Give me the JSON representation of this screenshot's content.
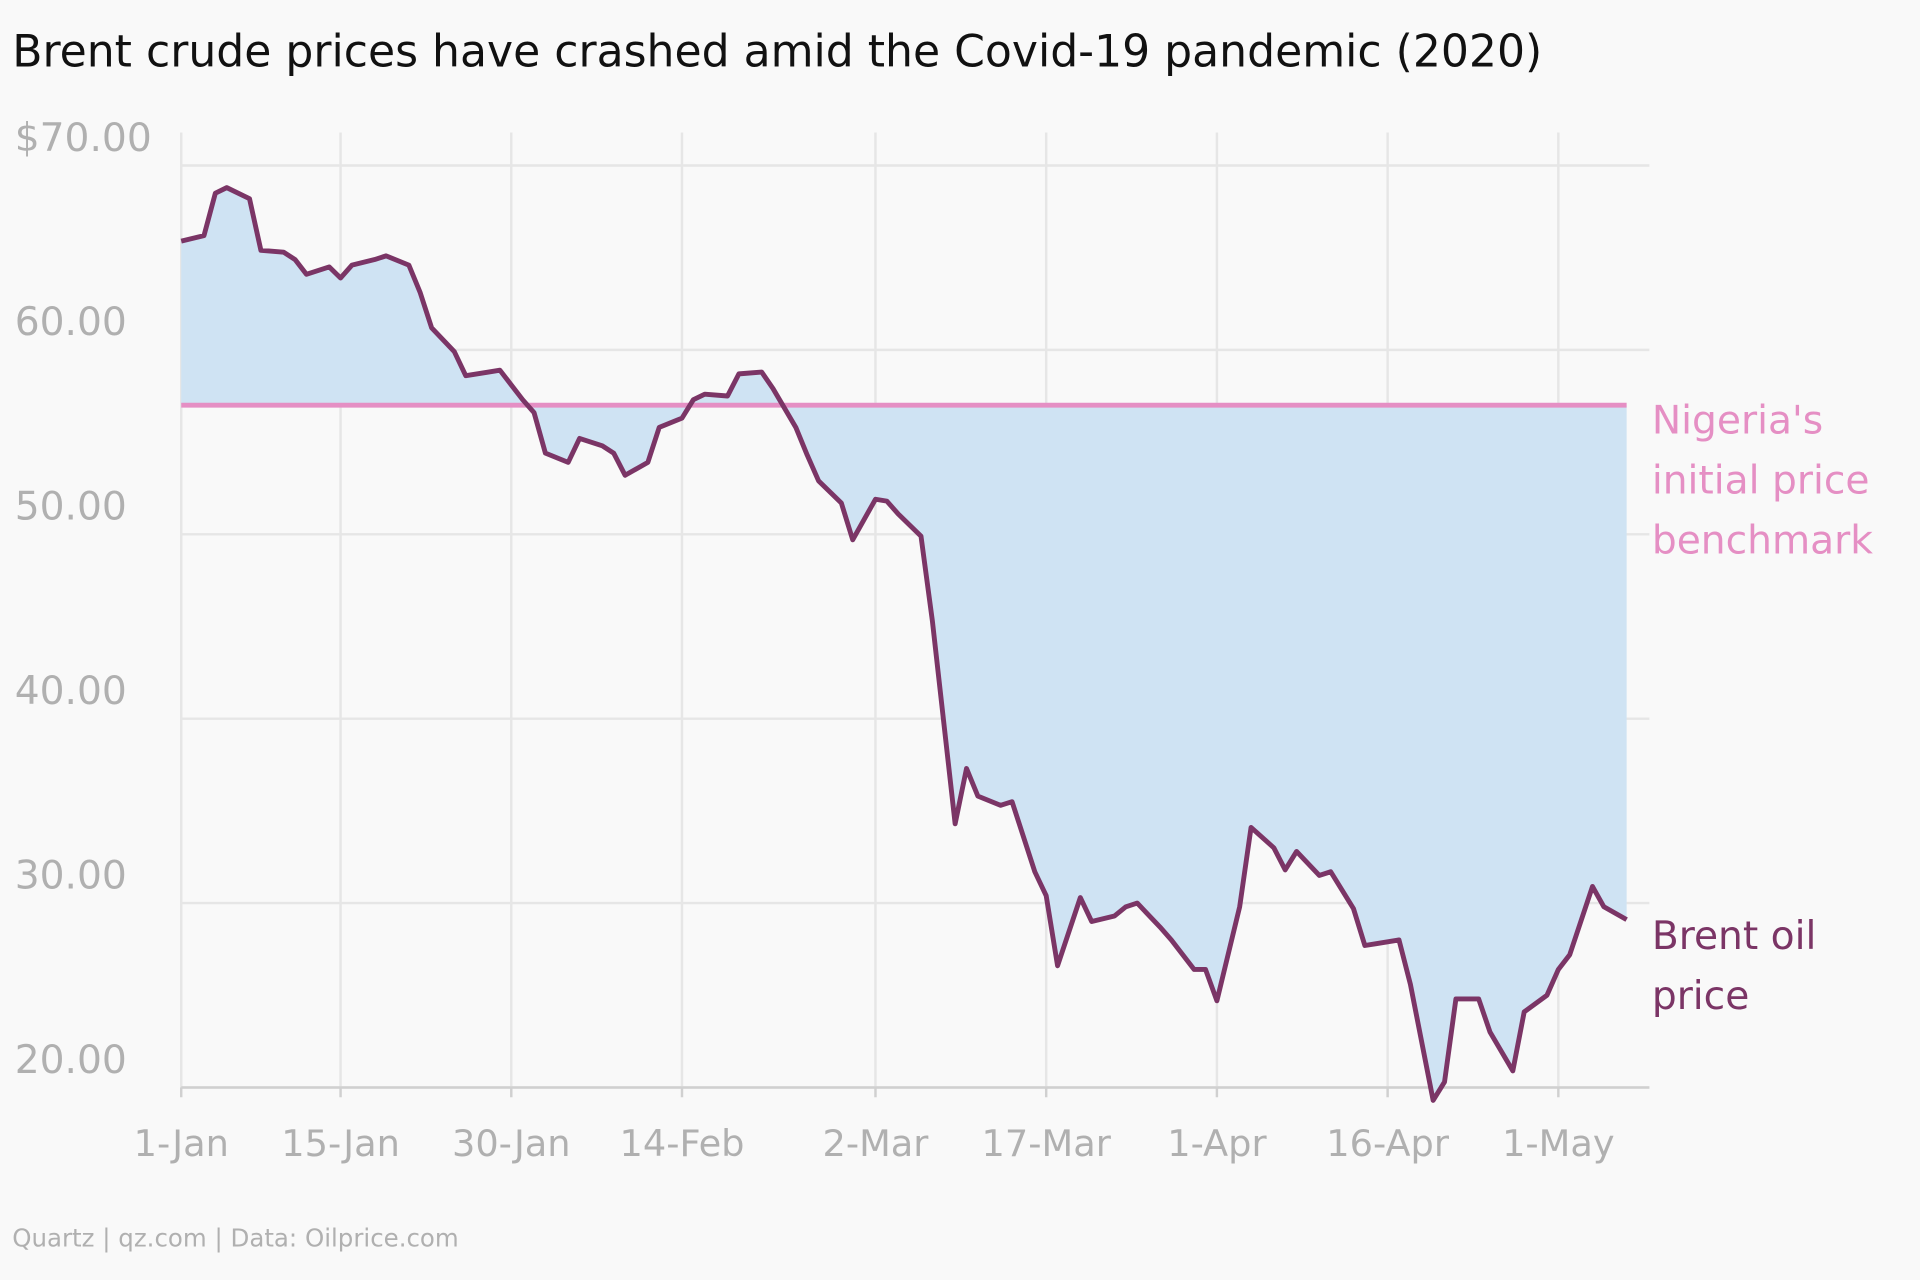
{
  "chart_data": {
    "type": "line",
    "title": "Brent crude prices have crashed amid the Covid-19 pandemic (2020)",
    "source": "Quartz | qz.com | Data: Oilprice.com",
    "x": [
      "1-Jan",
      "3-Jan",
      "4-Jan",
      "5-Jan",
      "7-Jan",
      "8-Jan",
      "10-Jan",
      "11-Jan",
      "12-Jan",
      "14-Jan",
      "15-Jan",
      "16-Jan",
      "18-Jan",
      "19-Jan",
      "21-Jan",
      "22-Jan",
      "23-Jan",
      "25-Jan",
      "26-Jan",
      "28-Jan",
      "29-Jan",
      "31-Jan",
      "1-Feb",
      "2-Feb",
      "4-Feb",
      "5-Feb",
      "7-Feb",
      "8-Feb",
      "9-Feb",
      "11-Feb",
      "12-Feb",
      "14-Feb",
      "15-Feb",
      "16-Feb",
      "18-Feb",
      "19-Feb",
      "21-Feb",
      "22-Feb",
      "24-Feb",
      "25-Feb",
      "26-Feb",
      "28-Feb",
      "29-Feb",
      "2-Mar",
      "3-Mar",
      "4-Mar",
      "6-Mar",
      "7-Mar",
      "9-Mar",
      "10-Mar",
      "11-Mar",
      "13-Mar",
      "14-Mar",
      "16-Mar",
      "17-Mar",
      "18-Mar",
      "20-Mar",
      "21-Mar",
      "23-Mar",
      "24-Mar",
      "25-Mar",
      "27-Mar",
      "28-Mar",
      "30-Mar",
      "31-Mar",
      "1-Apr",
      "3-Apr",
      "4-Apr",
      "6-Apr",
      "7-Apr",
      "8-Apr",
      "10-Apr",
      "11-Apr",
      "13-Apr",
      "14-Apr",
      "15-Apr",
      "17-Apr",
      "18-Apr",
      "20-Apr",
      "21-Apr",
      "22-Apr",
      "24-Apr",
      "25-Apr",
      "27-Apr",
      "28-Apr",
      "30-Apr",
      "1-May",
      "2-May",
      "4-May",
      "5-May",
      "7-May"
    ],
    "series": [
      {
        "name": "Brent oil price",
        "color": "#7b3566",
        "values": [
          65.9,
          66.2,
          68.5,
          68.8,
          68.2,
          65.4,
          65.3,
          64.9,
          64.1,
          64.5,
          63.9,
          64.6,
          64.9,
          65.1,
          64.6,
          63.1,
          61.2,
          59.9,
          58.6,
          58.8,
          58.9,
          57.3,
          56.6,
          54.4,
          53.9,
          55.2,
          54.8,
          54.4,
          53.2,
          53.9,
          55.8,
          56.3,
          57.3,
          57.6,
          57.5,
          58.7,
          58.8,
          57.9,
          55.8,
          54.3,
          52.9,
          51.7,
          49.7,
          51.9,
          51.8,
          51.1,
          49.9,
          45.3,
          34.3,
          37.3,
          35.8,
          35.3,
          35.5,
          31.7,
          30.4,
          26.6,
          30.3,
          29.0,
          29.3,
          29.8,
          30.0,
          28.7,
          28.0,
          26.4,
          26.4,
          24.7,
          29.8,
          34.1,
          33.0,
          31.8,
          32.8,
          31.5,
          31.7,
          29.7,
          27.7,
          27.8,
          28.0,
          25.6,
          19.3,
          20.3,
          24.8,
          24.8,
          23.0,
          20.9,
          24.1,
          25.0,
          26.4,
          27.2,
          30.9,
          29.8,
          29.1
        ]
      }
    ],
    "benchmark": {
      "name": "Nigeria's initial price benchmark",
      "value": 57,
      "color": "#e58fc4"
    },
    "fill_color": "#cfe3f3",
    "xlim": [
      "1-Jan",
      "9-May"
    ],
    "xticks": [
      "1-Jan",
      "15-Jan",
      "30-Jan",
      "14-Feb",
      "2-Mar",
      "17-Mar",
      "1-Apr",
      "16-Apr",
      "1-May"
    ],
    "ylim": [
      19,
      70
    ],
    "yticks": [
      {
        "value": 20,
        "label": "20.00"
      },
      {
        "value": 30,
        "label": "30.00"
      },
      {
        "value": 40,
        "label": "40.00"
      },
      {
        "value": 50,
        "label": "50.00"
      },
      {
        "value": 60,
        "label": "60.00"
      },
      {
        "value": 70,
        "label": "$70.00"
      }
    ],
    "grid": true
  }
}
